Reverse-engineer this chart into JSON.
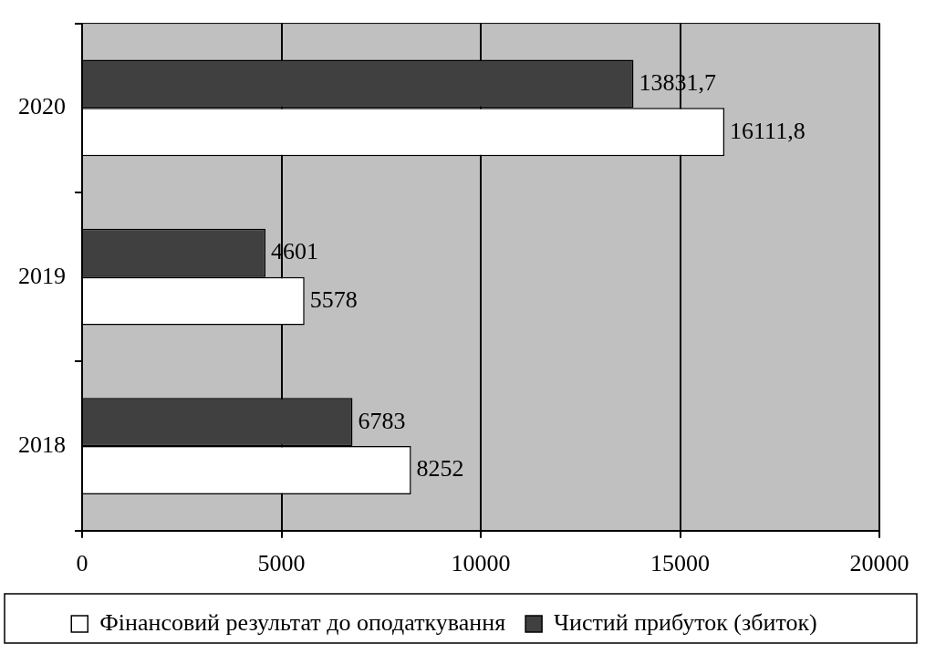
{
  "chart_data": {
    "type": "bar",
    "orientation": "horizontal",
    "categories": [
      "2020",
      "2019",
      "2018"
    ],
    "series": [
      {
        "name": "Фінансовий результат до оподаткування",
        "color": "#ffffff",
        "values": [
          16111.8,
          5578,
          8252
        ],
        "value_labels": [
          "16111,8",
          "5578",
          "8252"
        ]
      },
      {
        "name": "Чистий прибуток (збиток)",
        "color": "#404040",
        "values": [
          13831.7,
          4601,
          6783
        ],
        "value_labels": [
          "13831,7",
          "4601",
          "6783"
        ]
      }
    ],
    "xlim": [
      0,
      20000
    ],
    "xticks": [
      0,
      5000,
      10000,
      15000,
      20000
    ],
    "grid": "x",
    "legend": "bottom"
  }
}
